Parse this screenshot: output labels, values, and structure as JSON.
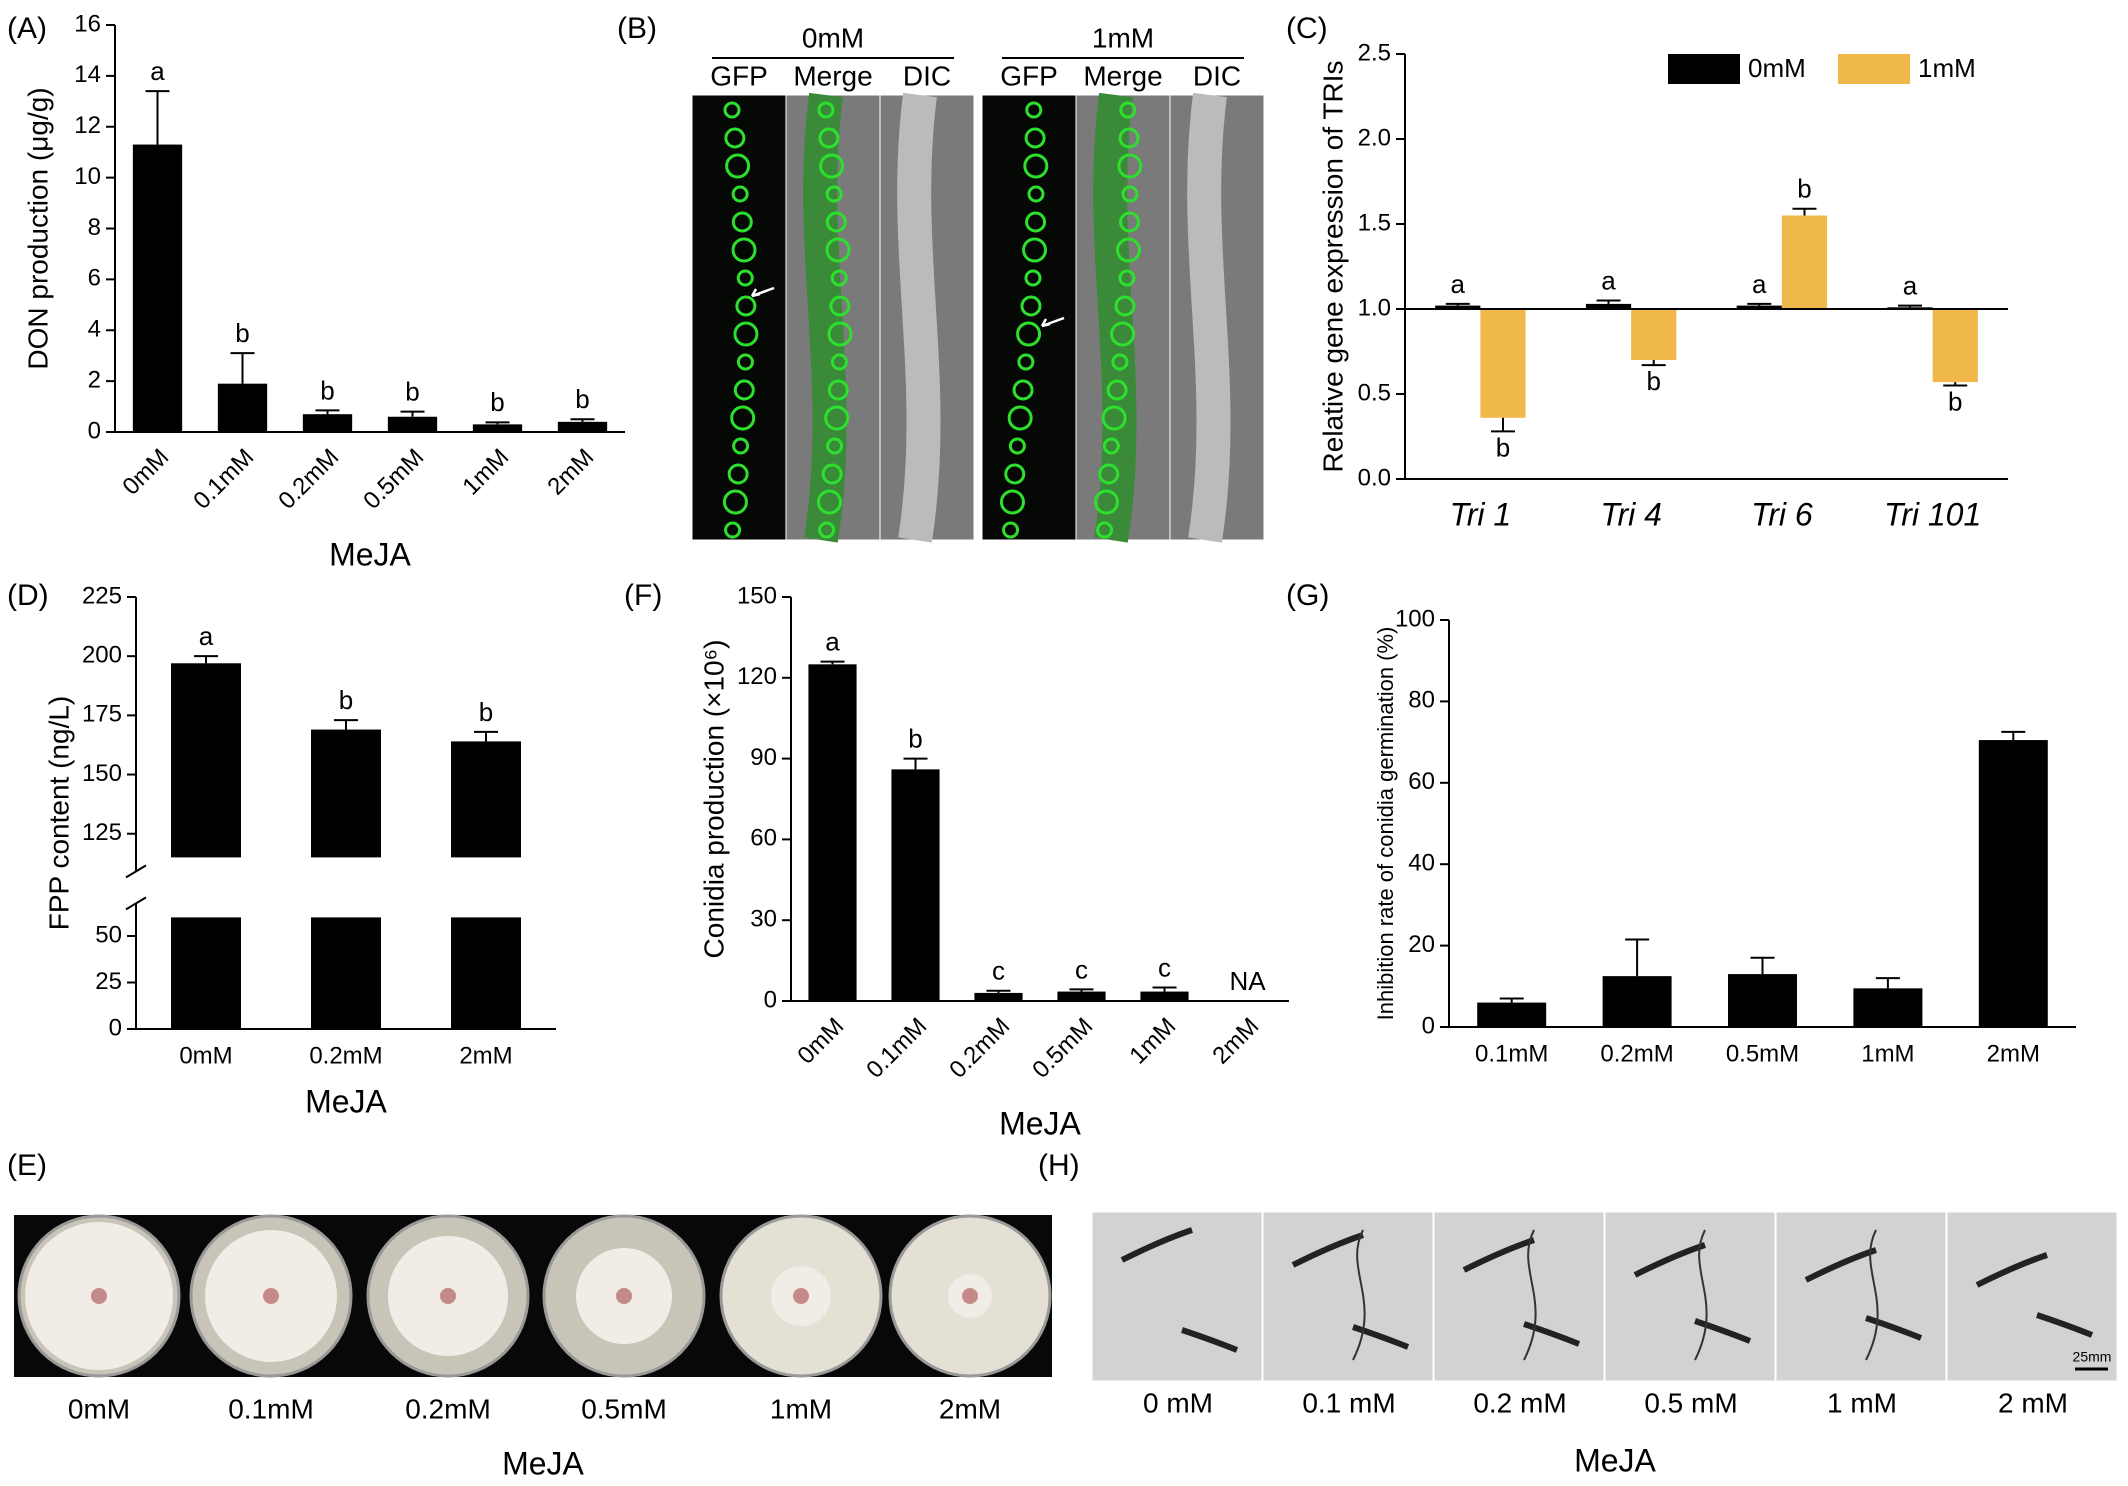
{
  "chart_data": [
    {
      "type": "bar",
      "panel": "(A)",
      "ylabel": "DON production (μg/g)",
      "xlabel": "MeJA",
      "categories": [
        "0mM",
        "0.1mM",
        "0.2mM",
        "0.5mM",
        "1mM",
        "2mM"
      ],
      "series": [
        {
          "name": "MeJA",
          "color": "#000000",
          "values": [
            11.3,
            1.9,
            0.7,
            0.6,
            0.3,
            0.4
          ],
          "errors": [
            2.1,
            1.2,
            0.15,
            0.2,
            0.08,
            0.1
          ],
          "letters": [
            "a",
            "b",
            "b",
            "b",
            "b",
            "b"
          ]
        }
      ],
      "ylim": [
        0,
        16
      ],
      "yticks": [
        0,
        2,
        4,
        6,
        8,
        10,
        12,
        14,
        16
      ],
      "xtick_rotation": 45
    },
    {
      "type": "bar",
      "panel": "(C)",
      "ylabel": "Relative gene expression of TRIs",
      "categories": [
        "Tri 1",
        "Tri 4",
        "Tri 6",
        "Tri 101"
      ],
      "italic_categories": true,
      "baseline": 1,
      "series": [
        {
          "name": "0mM",
          "color": "#000000",
          "values": [
            1.02,
            1.03,
            1.02,
            1.01
          ],
          "errors": [
            0.01,
            0.02,
            0.01,
            0.01
          ],
          "letters": [
            "a",
            "a",
            "a",
            "a"
          ]
        },
        {
          "name": "1mM",
          "color": "#f0b84a",
          "values": [
            0.36,
            0.7,
            1.55,
            0.57
          ],
          "errors": [
            0.08,
            0.03,
            0.04,
            0.02
          ],
          "letters": [
            "b",
            "b",
            "b",
            "b"
          ]
        }
      ],
      "ylim": [
        0,
        2.5
      ],
      "yticks": [
        {
          "value": 0,
          "label": "0.0"
        },
        0.5,
        {
          "value": 1,
          "label": "1.0"
        },
        1.5,
        {
          "value": 2,
          "label": "2.0"
        },
        2.5
      ],
      "legend": "top-right"
    },
    {
      "type": "bar",
      "panel": "(D)",
      "ylabel": "FPP content (ng/L)",
      "xlabel": "MeJA",
      "categories": [
        "0mM",
        "0.2mM",
        "2mM"
      ],
      "series": [
        {
          "name": "MeJA",
          "color": "#000000",
          "values": [
            197,
            169,
            164
          ],
          "errors": [
            3,
            4,
            4
          ],
          "letters": [
            "a",
            "b",
            "b"
          ]
        }
      ],
      "ylim": [
        0,
        225
      ],
      "axis_break": [
        60,
        115
      ],
      "yticks": [
        0,
        25,
        50,
        125,
        150,
        175,
        200,
        225
      ]
    },
    {
      "type": "bar",
      "panel": "(F)",
      "ylabel": "Conidia production  (×10⁶)",
      "xlabel": "MeJA",
      "categories": [
        "0mM",
        "0.1mM",
        "0.2mM",
        "0.5mM",
        "1mM",
        "2mM"
      ],
      "series": [
        {
          "name": "MeJA",
          "color": "#000000",
          "values": [
            125,
            86,
            3,
            3.5,
            3.5,
            null
          ],
          "errors": [
            1,
            4,
            0.8,
            0.8,
            1.5,
            null
          ],
          "letters": [
            "a",
            "b",
            "c",
            "c",
            "c",
            "NA"
          ]
        }
      ],
      "ylim": [
        0,
        150
      ],
      "yticks": [
        0,
        30,
        60,
        90,
        120,
        150
      ],
      "xtick_rotation": 45
    },
    {
      "type": "bar",
      "panel": "(G)",
      "ylabel": "Inhibition rate of conidia germination (%)",
      "categories": [
        "0.1mM",
        "0.2mM",
        "0.5mM",
        "1mM",
        "2mM"
      ],
      "series": [
        {
          "name": "MeJA",
          "color": "#000000",
          "values": [
            6,
            12.5,
            13,
            9.5,
            70.5
          ],
          "errors": [
            1,
            9,
            4,
            2.5,
            2
          ]
        }
      ],
      "ylim": [
        0,
        100
      ],
      "yticks": [
        0,
        20,
        40,
        60,
        80,
        100
      ]
    }
  ],
  "image_panels": {
    "B": {
      "label": "(B)",
      "groups": [
        {
          "title": "0mM",
          "channels": [
            "GFP",
            "Merge",
            "DIC"
          ]
        },
        {
          "title": "1mM",
          "channels": [
            "GFP",
            "Merge",
            "DIC"
          ]
        }
      ]
    },
    "E": {
      "label": "(E)",
      "captions": [
        "0mM",
        "0.1mM",
        "0.2mM",
        "0.5mM",
        "1mM",
        "2mM"
      ],
      "xlabel": "MeJA"
    },
    "H": {
      "label": "(H)",
      "captions": [
        "0 mM",
        "0.1 mM",
        "0.2 mM",
        "0.5 mM",
        "1 mM",
        "2 mM"
      ],
      "scale_bar": "25mm",
      "xlabel": "MeJA"
    }
  }
}
